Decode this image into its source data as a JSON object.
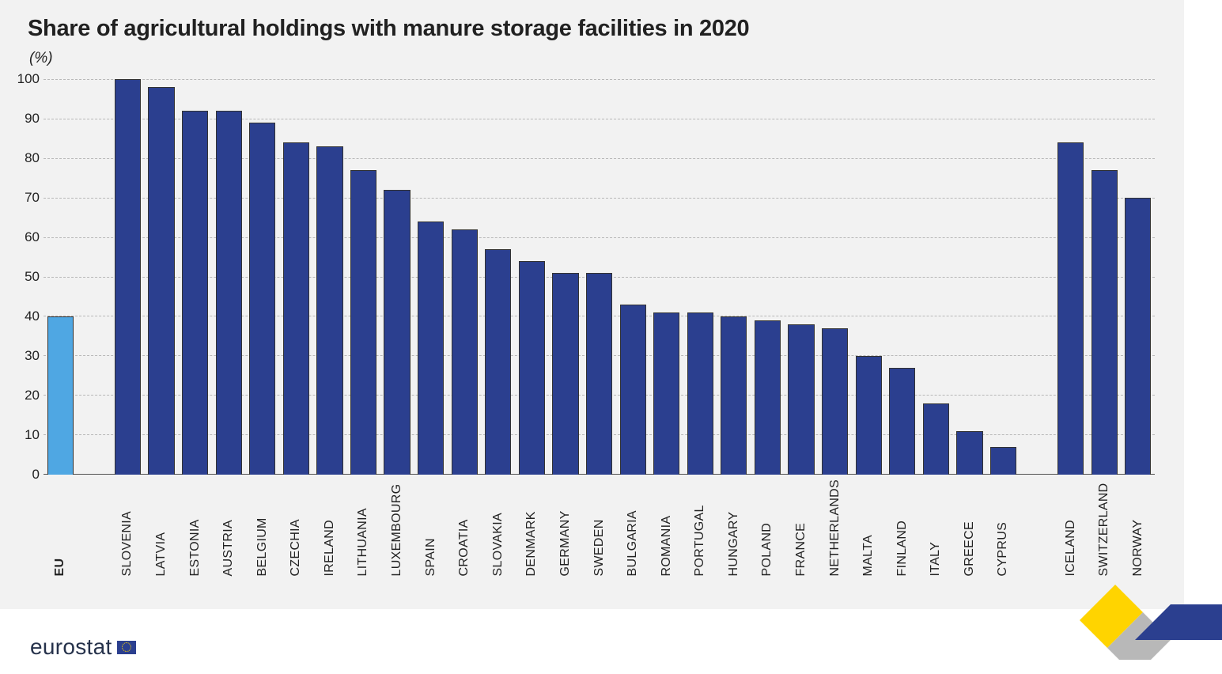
{
  "title": "Share of agricultural holdings with manure storage facilities in 2020",
  "unit_label": "(%)",
  "footer_brand": "eurostat",
  "chart": {
    "type": "bar",
    "ylim": [
      0,
      100
    ],
    "ytick_step": 10,
    "background_color": "#f2f2f2",
    "grid_color": "#b8b8b8",
    "grid_dash": true,
    "axis_color": "#555555",
    "bar_border_color": "#333333",
    "bar_width_pct": 78,
    "title_fontsize": 29,
    "title_color": "#212121",
    "label_fontsize": 16,
    "ytick_fontsize": 17,
    "colors": {
      "eu": "#4fa7e3",
      "country": "#2b3f8f"
    },
    "groups": [
      {
        "name": "eu",
        "bars": [
          {
            "label": "EU",
            "value": 40,
            "color_key": "eu",
            "bold": true
          }
        ]
      },
      {
        "name": "eu_countries",
        "bars": [
          {
            "label": "SLOVENIA",
            "value": 100,
            "color_key": "country"
          },
          {
            "label": "LATVIA",
            "value": 98,
            "color_key": "country"
          },
          {
            "label": "ESTONIA",
            "value": 92,
            "color_key": "country"
          },
          {
            "label": "AUSTRIA",
            "value": 92,
            "color_key": "country"
          },
          {
            "label": "BELGIUM",
            "value": 89,
            "color_key": "country"
          },
          {
            "label": "CZECHIA",
            "value": 84,
            "color_key": "country"
          },
          {
            "label": "IRELAND",
            "value": 83,
            "color_key": "country"
          },
          {
            "label": "LITHUANIA",
            "value": 77,
            "color_key": "country"
          },
          {
            "label": "LUXEMBOURG",
            "value": 72,
            "color_key": "country"
          },
          {
            "label": "SPAIN",
            "value": 64,
            "color_key": "country"
          },
          {
            "label": "CROATIA",
            "value": 62,
            "color_key": "country"
          },
          {
            "label": "SLOVAKIA",
            "value": 57,
            "color_key": "country"
          },
          {
            "label": "DENMARK",
            "value": 54,
            "color_key": "country"
          },
          {
            "label": "GERMANY",
            "value": 51,
            "color_key": "country"
          },
          {
            "label": "SWEDEN",
            "value": 51,
            "color_key": "country"
          },
          {
            "label": "BULGARIA",
            "value": 43,
            "color_key": "country"
          },
          {
            "label": "ROMANIA",
            "value": 41,
            "color_key": "country"
          },
          {
            "label": "PORTUGAL",
            "value": 41,
            "color_key": "country"
          },
          {
            "label": "HUNGARY",
            "value": 40,
            "color_key": "country"
          },
          {
            "label": "POLAND",
            "value": 39,
            "color_key": "country"
          },
          {
            "label": "FRANCE",
            "value": 38,
            "color_key": "country"
          },
          {
            "label": "NETHERLANDS",
            "value": 37,
            "color_key": "country"
          },
          {
            "label": "MALTA",
            "value": 30,
            "color_key": "country"
          },
          {
            "label": "FINLAND",
            "value": 27,
            "color_key": "country"
          },
          {
            "label": "ITALY",
            "value": 18,
            "color_key": "country"
          },
          {
            "label": "GREECE",
            "value": 11,
            "color_key": "country"
          },
          {
            "label": "CYPRUS",
            "value": 7,
            "color_key": "country"
          }
        ]
      },
      {
        "name": "efta",
        "bars": [
          {
            "label": "ICELAND",
            "value": 84,
            "color_key": "country"
          },
          {
            "label": "SWITZERLAND",
            "value": 77,
            "color_key": "country"
          },
          {
            "label": "NORWAY",
            "value": 70,
            "color_key": "country"
          }
        ]
      }
    ]
  },
  "decoration": {
    "stripe_colors": [
      "#ffd400",
      "#b8b8b8",
      "#2b3f8f"
    ]
  }
}
